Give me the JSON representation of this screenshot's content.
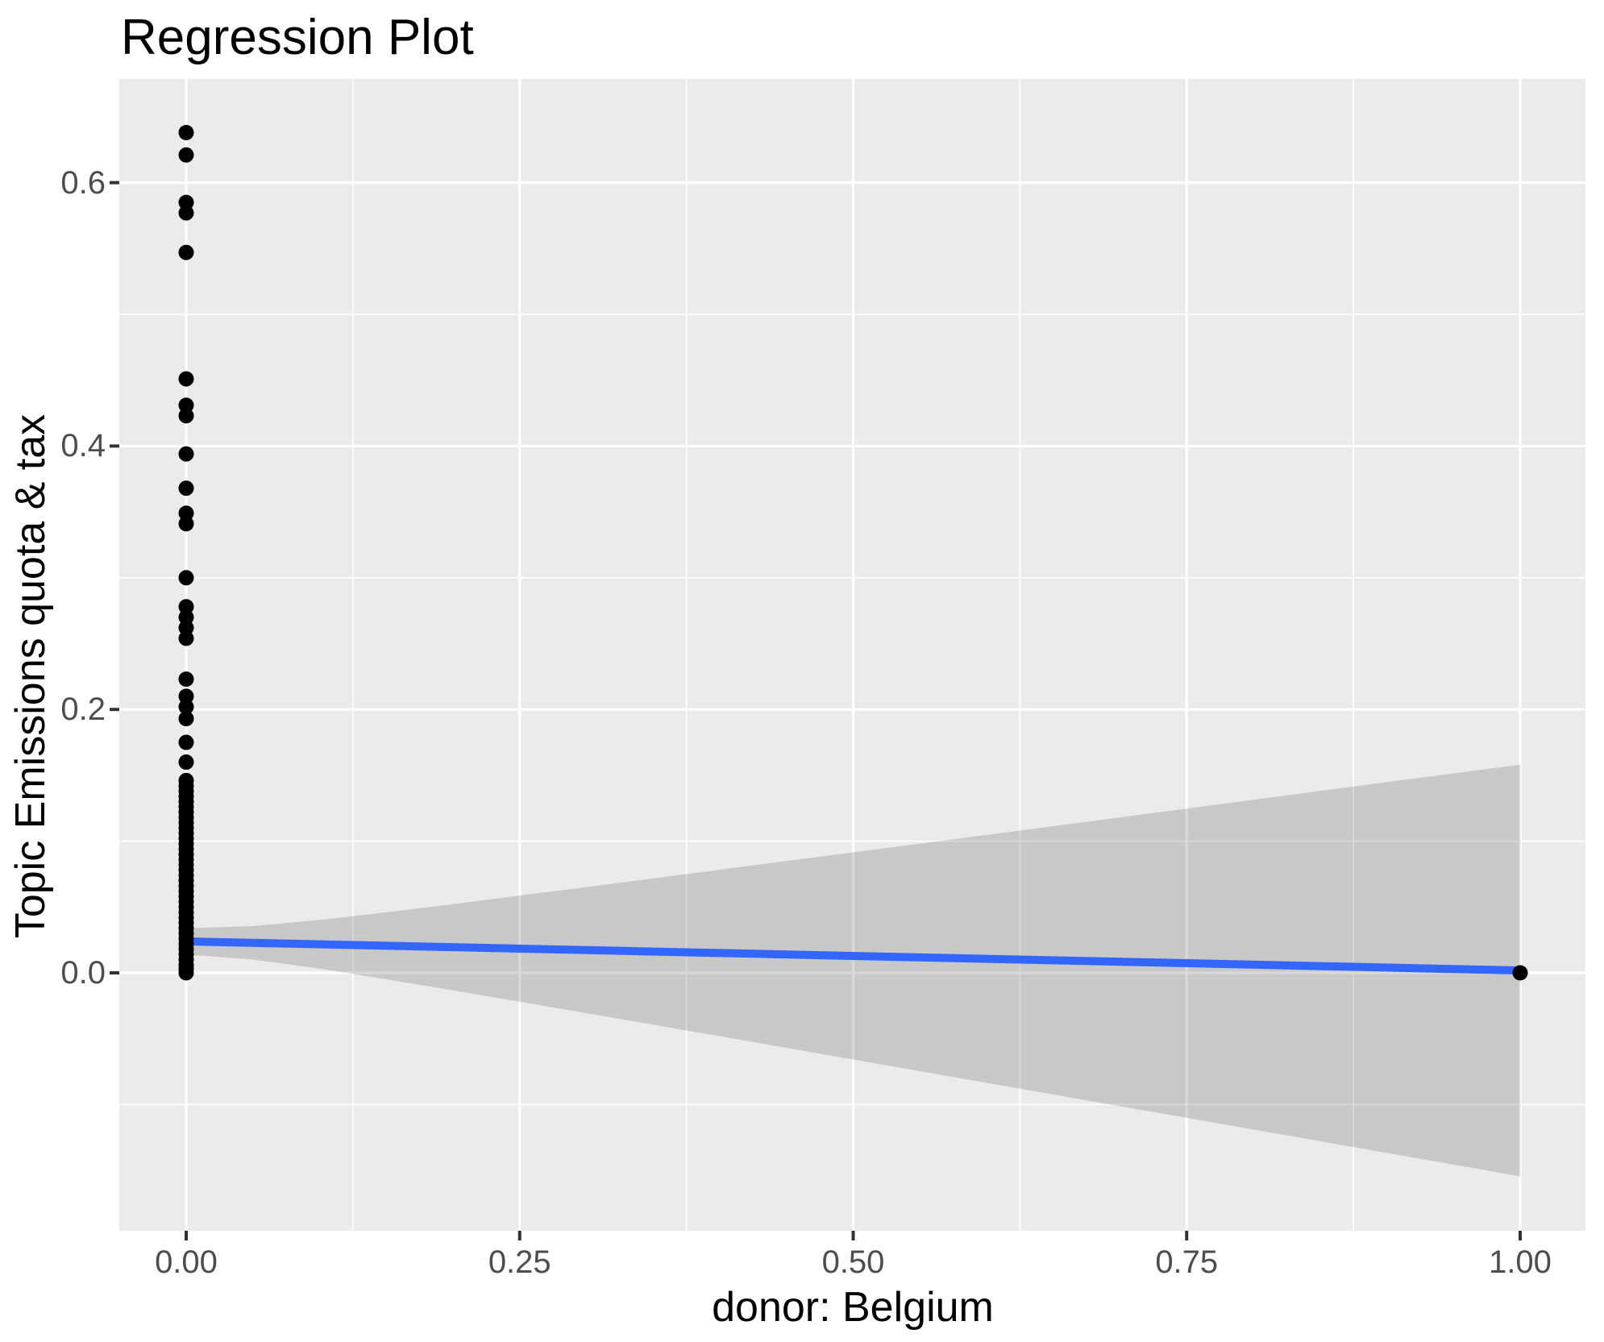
{
  "title": "Regression Plot",
  "axes": {
    "x_title": "donor: Belgium",
    "y_title": "Topic Emissions quota & tax",
    "x_ticks": [
      {
        "label": "0.00",
        "value": 0.0
      },
      {
        "label": "0.25",
        "value": 0.25
      },
      {
        "label": "0.50",
        "value": 0.5
      },
      {
        "label": "0.75",
        "value": 0.75
      },
      {
        "label": "1.00",
        "value": 1.0
      }
    ],
    "y_ticks": [
      {
        "label": "0.0",
        "value": 0.0
      },
      {
        "label": "0.2",
        "value": 0.2
      },
      {
        "label": "0.4",
        "value": 0.4
      },
      {
        "label": "0.6",
        "value": 0.6
      }
    ]
  },
  "colors": {
    "background": "#FFFFFF",
    "panel": "#EBEBEB",
    "grid": "#FFFFFF",
    "point": "#000000",
    "regression_line": "#3366FF",
    "ci_band": "rgba(0,0,0,0.15)",
    "tick_text": "#4D4D4D",
    "tick_mark": "#333333",
    "title_text": "#000000"
  },
  "chart_data": {
    "type": "scatter",
    "title": "Regression Plot",
    "xlabel": "donor: Belgium",
    "ylabel": "Topic Emissions quota & tax",
    "xlim": [
      -0.05,
      1.05
    ],
    "ylim": [
      -0.196,
      0.679
    ],
    "grid": "on",
    "x_major": [
      0.0,
      0.25,
      0.5,
      0.75,
      1.0
    ],
    "x_minor": [
      0.125,
      0.375,
      0.625,
      0.875
    ],
    "y_major": [
      0.0,
      0.2,
      0.4,
      0.6
    ],
    "y_minor": [
      -0.1,
      0.1,
      0.3,
      0.5
    ],
    "points": [
      [
        0,
        0.638
      ],
      [
        0,
        0.621
      ],
      [
        0,
        0.585
      ],
      [
        0,
        0.577
      ],
      [
        0,
        0.547
      ],
      [
        0,
        0.451
      ],
      [
        0,
        0.431
      ],
      [
        0,
        0.423
      ],
      [
        0,
        0.394
      ],
      [
        0,
        0.368
      ],
      [
        0,
        0.349
      ],
      [
        0,
        0.341
      ],
      [
        0,
        0.3
      ],
      [
        0,
        0.278
      ],
      [
        0,
        0.27
      ],
      [
        0,
        0.262
      ],
      [
        0,
        0.254
      ],
      [
        0,
        0.223
      ],
      [
        0,
        0.21
      ],
      [
        0,
        0.202
      ],
      [
        0,
        0.193
      ],
      [
        0,
        0.175
      ],
      [
        0,
        0.16
      ],
      [
        0,
        0.146
      ],
      [
        0,
        0.142
      ],
      [
        0,
        0.138
      ],
      [
        0,
        0.134
      ],
      [
        0,
        0.13
      ],
      [
        0,
        0.126
      ],
      [
        0,
        0.122
      ],
      [
        0,
        0.118
      ],
      [
        0,
        0.114
      ],
      [
        0,
        0.11
      ],
      [
        0,
        0.106
      ],
      [
        0,
        0.102
      ],
      [
        0,
        0.098
      ],
      [
        0,
        0.094
      ],
      [
        0,
        0.09
      ],
      [
        0,
        0.086
      ],
      [
        0,
        0.082
      ],
      [
        0,
        0.078
      ],
      [
        0,
        0.074
      ],
      [
        0,
        0.07
      ],
      [
        0,
        0.066
      ],
      [
        0,
        0.062
      ],
      [
        0,
        0.058
      ],
      [
        0,
        0.054
      ],
      [
        0,
        0.05
      ],
      [
        0,
        0.046
      ],
      [
        0,
        0.042
      ],
      [
        0,
        0.038
      ],
      [
        0,
        0.034
      ],
      [
        0,
        0.03
      ],
      [
        0,
        0.026
      ],
      [
        0,
        0.022
      ],
      [
        0,
        0.018
      ],
      [
        0,
        0.014
      ],
      [
        0,
        0.01
      ],
      [
        0,
        0.006
      ],
      [
        0,
        0.003
      ],
      [
        0,
        0.0
      ],
      [
        1,
        0.0
      ]
    ],
    "regression_line": {
      "x1": 0.0,
      "y1": 0.0239,
      "x2": 1.0,
      "y2": 0.0018
    },
    "ci_band": {
      "upper": [
        [
          0.0,
          0.0339
        ],
        [
          0.05,
          0.0355
        ],
        [
          0.1,
          0.0402
        ],
        [
          0.15,
          0.046
        ],
        [
          0.2,
          0.0522
        ],
        [
          0.3,
          0.0651
        ],
        [
          0.4,
          0.0783
        ],
        [
          0.5,
          0.0915
        ],
        [
          0.6,
          0.1047
        ],
        [
          0.75,
          0.1247
        ],
        [
          0.875,
          0.1415
        ],
        [
          1.0,
          0.1581
        ]
      ],
      "lower": [
        [
          0.0,
          0.0139
        ],
        [
          0.05,
          0.0101
        ],
        [
          0.1,
          0.0032
        ],
        [
          0.15,
          -0.0049
        ],
        [
          0.2,
          -0.0133
        ],
        [
          0.3,
          -0.0306
        ],
        [
          0.4,
          -0.0481
        ],
        [
          0.5,
          -0.0658
        ],
        [
          0.6,
          -0.0835
        ],
        [
          0.75,
          -0.1101
        ],
        [
          0.875,
          -0.1323
        ],
        [
          1.0,
          -0.1545
        ]
      ]
    }
  }
}
